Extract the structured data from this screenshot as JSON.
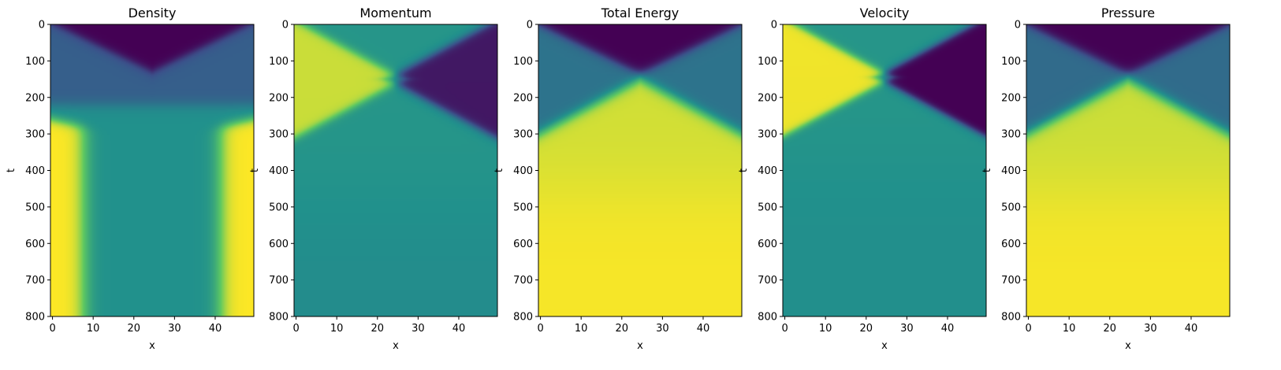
{
  "figure": {
    "colormap": "viridis",
    "colormap_stops": [
      "#440154",
      "#3b528b",
      "#21918c",
      "#5ec962",
      "#fde725"
    ]
  },
  "chart_data": [
    {
      "type": "heatmap",
      "title": "Density",
      "xlabel": "x",
      "ylabel": "t",
      "xlim": [
        0,
        49
      ],
      "ylim": [
        800,
        0
      ],
      "xticks": [
        0,
        10,
        20,
        30,
        40
      ],
      "yticks": [
        0,
        100,
        200,
        300,
        400,
        500,
        600,
        700,
        800
      ],
      "description_values": "Sod-like shock tube: high at x<8 and x>42 for t>280, dark region near t<130 at center"
    },
    {
      "type": "heatmap",
      "title": "Momentum",
      "xlabel": "x",
      "ylabel": "t",
      "xlim": [
        0,
        49
      ],
      "ylim": [
        800,
        0
      ],
      "xticks": [
        0,
        10,
        20,
        30,
        40
      ],
      "yticks": [
        0,
        100,
        200,
        300,
        400,
        500,
        600,
        700,
        800
      ]
    },
    {
      "type": "heatmap",
      "title": "Total Energy",
      "xlabel": "x",
      "ylabel": "t",
      "xlim": [
        0,
        49
      ],
      "ylim": [
        800,
        0
      ],
      "xticks": [
        0,
        10,
        20,
        30,
        40
      ],
      "yticks": [
        0,
        100,
        200,
        300,
        400,
        500,
        600,
        700,
        800
      ]
    },
    {
      "type": "heatmap",
      "title": "Velocity",
      "xlabel": "x",
      "ylabel": "t",
      "xlim": [
        0,
        49
      ],
      "ylim": [
        800,
        0
      ],
      "xticks": [
        0,
        10,
        20,
        30,
        40
      ],
      "yticks": [
        0,
        100,
        200,
        300,
        400,
        500,
        600,
        700,
        800
      ]
    },
    {
      "type": "heatmap",
      "title": "Pressure",
      "xlabel": "x",
      "ylabel": "t",
      "xlim": [
        0,
        49
      ],
      "ylim": [
        800,
        0
      ],
      "xticks": [
        0,
        10,
        20,
        30,
        40
      ],
      "yticks": [
        0,
        100,
        200,
        300,
        400,
        500,
        600,
        700,
        800
      ]
    }
  ]
}
